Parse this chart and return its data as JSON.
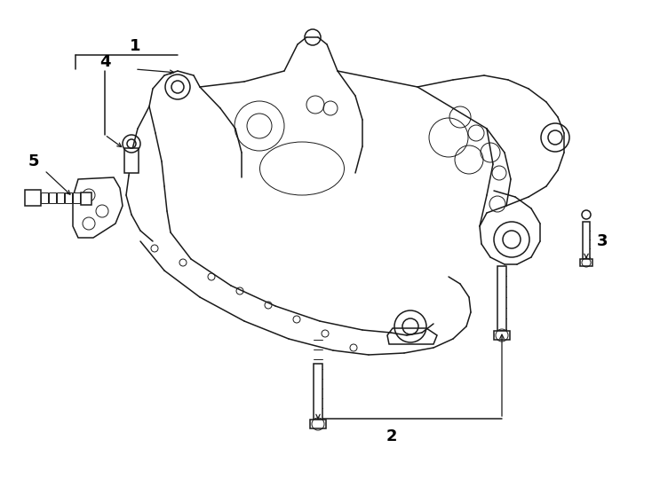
{
  "bg_color": "#ffffff",
  "line_color": "#1a1a1a",
  "label_color": "#000000",
  "fig_width": 7.34,
  "fig_height": 5.4,
  "dpi": 100,
  "label_fontsize": 13
}
